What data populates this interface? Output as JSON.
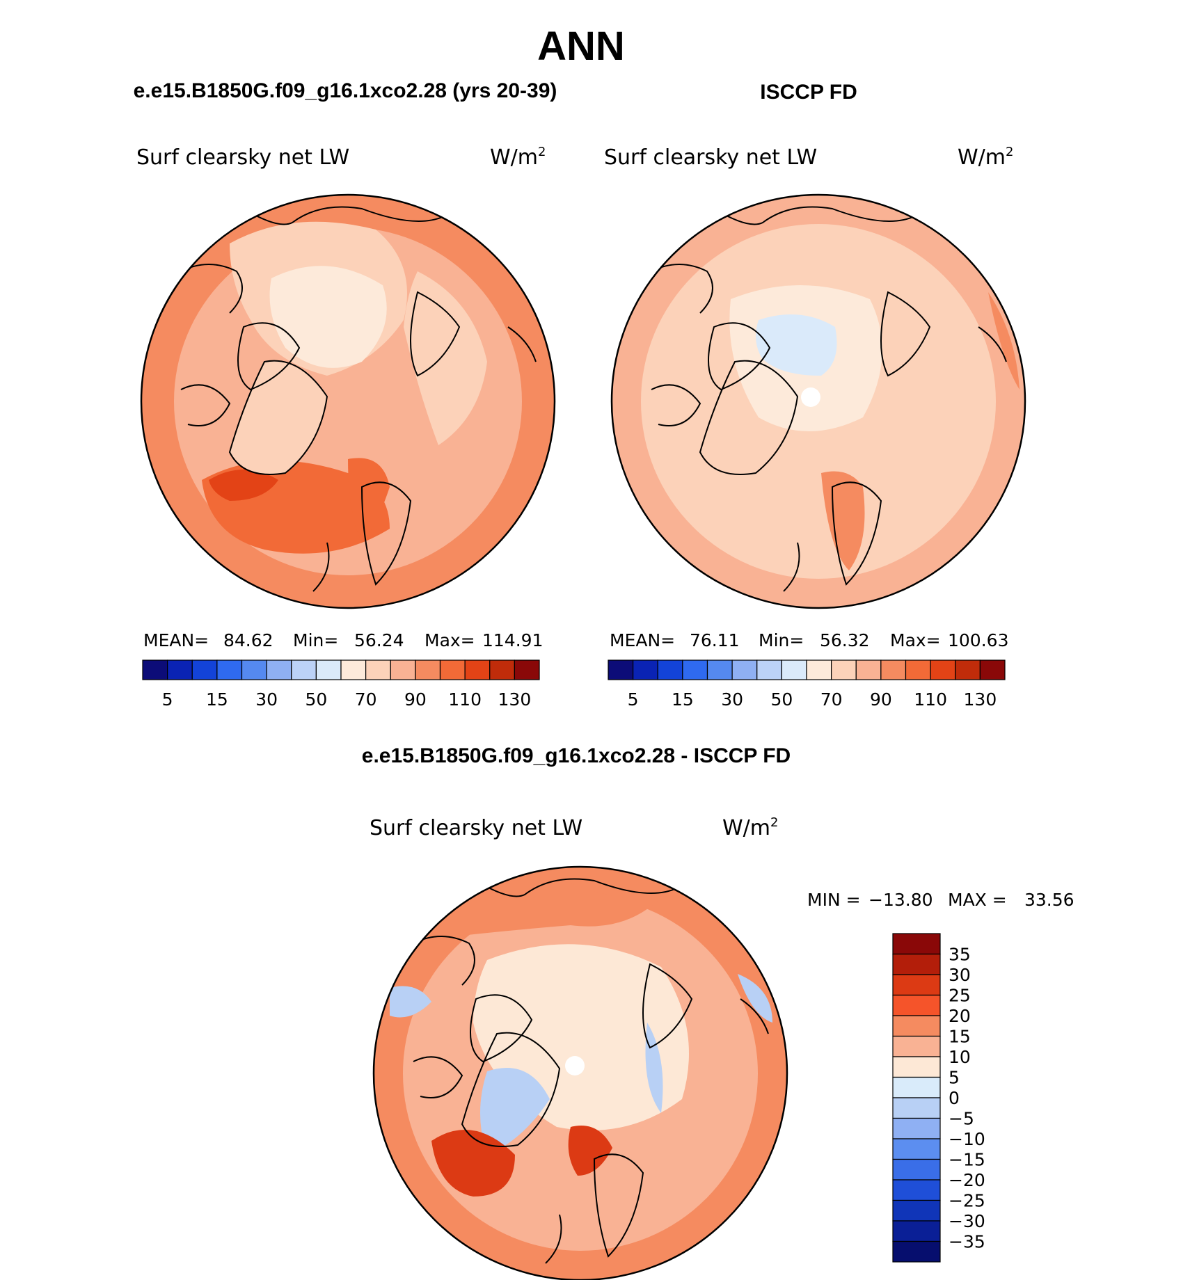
{
  "title": "ANN",
  "chart_data": [
    {
      "type": "heatmap",
      "projection": "north-polar-stereographic",
      "title": "e.e15.B1850G.f09_g16.1xco2.28 (yrs 20-39)",
      "variable": "Surf clearsky net LW",
      "units": "W/m",
      "units_exponent": "2",
      "stats_text": {
        "mean_label": "MEAN=",
        "mean": "84.62",
        "min_label": "Min=",
        "min": "56.24",
        "max_label": "Max=",
        "max": "114.91"
      },
      "colorbar": {
        "colors": [
          "#0c0c78",
          "#0a23b4",
          "#1343d8",
          "#2f6af0",
          "#5589f0",
          "#8fb0f3",
          "#bcd2f7",
          "#daeafa",
          "#fdeada",
          "#fcd2b9",
          "#f9b294",
          "#f58b60",
          "#f26a37",
          "#e34316",
          "#c02c0a",
          "#8a0808"
        ],
        "tick_labels": [
          "5",
          "15",
          "30",
          "50",
          "70",
          "90",
          "110",
          "130"
        ]
      },
      "regions": {
        "ocean_background": "#f9b294",
        "outer_ring": "#f58b60",
        "central_arctic": "#fdeada",
        "pole_ring": "#fcd2b9",
        "north_atlantic": "#f26a37",
        "north_atlantic_core": "#e34316",
        "siberia_land": "#fcd2b9"
      }
    },
    {
      "type": "heatmap",
      "projection": "north-polar-stereographic",
      "title": "ISCCP FD",
      "variable": "Surf clearsky net LW",
      "units": "W/m",
      "units_exponent": "2",
      "stats_text": {
        "mean_label": "MEAN=",
        "mean": "76.11",
        "min_label": "Min=",
        "min": "56.32",
        "max_label": "Max=",
        "max": "100.63"
      },
      "colorbar": {
        "colors": [
          "#0c0c78",
          "#0a23b4",
          "#1343d8",
          "#2f6af0",
          "#5589f0",
          "#8fb0f3",
          "#bcd2f7",
          "#daeafa",
          "#fdeada",
          "#fcd2b9",
          "#f9b294",
          "#f58b60",
          "#f26a37",
          "#e34316",
          "#c02c0a",
          "#8a0808"
        ],
        "tick_labels": [
          "5",
          "15",
          "30",
          "50",
          "70",
          "90",
          "110",
          "130"
        ]
      },
      "regions": {
        "ocean_background": "#fcd2b9",
        "outer_ring": "#f9b294",
        "central_arctic": "#fdeada",
        "low_patch": "#daeafa",
        "pole_hole": "#ffffff",
        "scandinavia_band": "#f58b60"
      }
    },
    {
      "type": "heatmap",
      "projection": "north-polar-stereographic",
      "title": "e.e15.B1850G.f09_g16.1xco2.28 - ISCCP FD",
      "variable": "Surf clearsky net LW",
      "units": "W/m",
      "units_exponent": "2",
      "minmax_text": {
        "min_label": "MIN =",
        "min": "−13.80",
        "max_label": "MAX =",
        "max": "33.56"
      },
      "colorbar": {
        "colors": [
          "#8a0808",
          "#b31e0a",
          "#dc3a14",
          "#f5542a",
          "#f58b60",
          "#f9b294",
          "#fde8d6",
          "#d9ebfa",
          "#b8d0f5",
          "#8fb0f3",
          "#5c8ef0",
          "#3a6ee8",
          "#1f4fd8",
          "#1035b8",
          "#0a1f96",
          "#060e6e"
        ],
        "tick_labels": [
          "35",
          "30",
          "25",
          "20",
          "15",
          "10",
          "5",
          "0",
          "−5",
          "−10",
          "−15",
          "−20",
          "−25",
          "−30",
          "−35"
        ]
      },
      "regions": {
        "ocean_background": "#f9b294",
        "outer_ring": "#f58b60",
        "central_arctic": "#fde8d6",
        "pole_hole": "#ffffff",
        "negative_patch": "#b8d0f5",
        "greenland_anomaly": "#dc3a14",
        "siberia": "#f58b60"
      }
    }
  ]
}
